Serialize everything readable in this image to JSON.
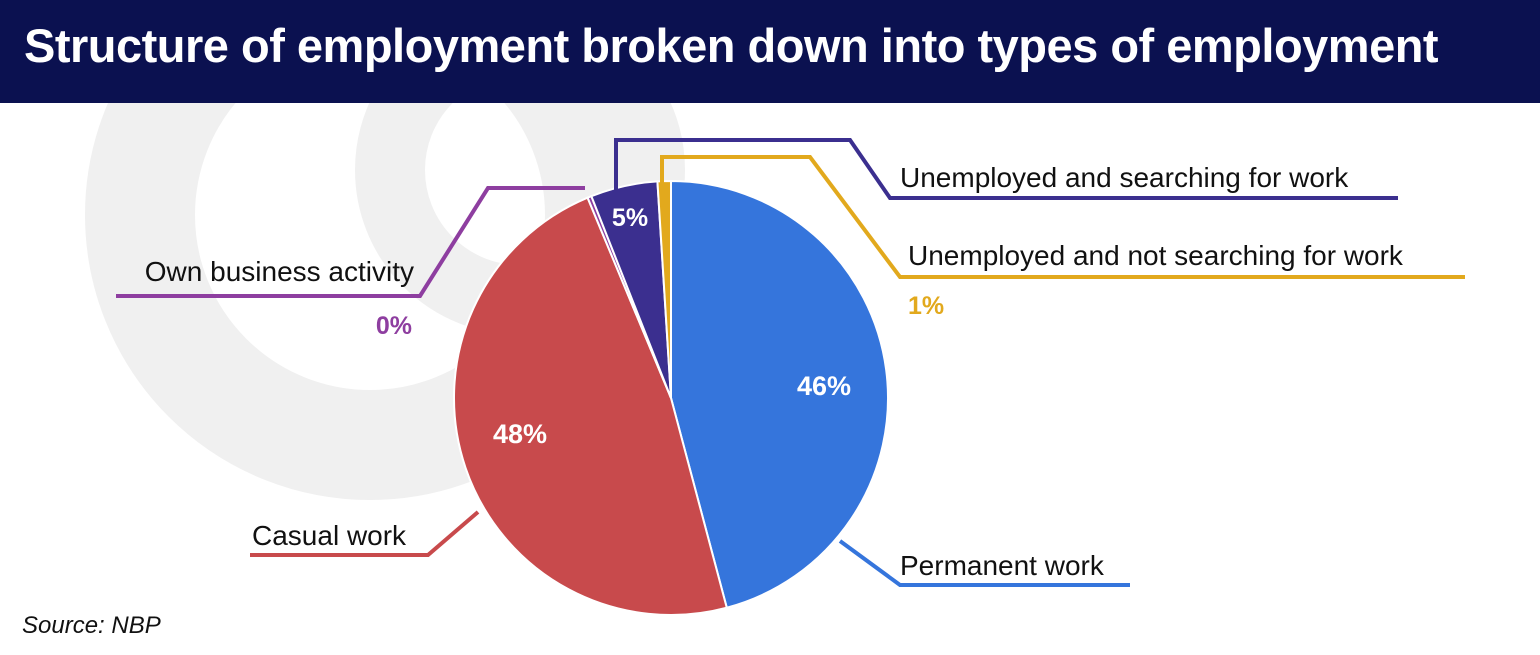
{
  "title": "Structure of employment broken down into types of employment",
  "source": "Source: NBP",
  "colors": {
    "header_bg": "#0b1150",
    "permanent": "#3575dc",
    "casual": "#c84a4c",
    "own_business": "#8e3ea0",
    "unemployed_searching": "#3b2f8f",
    "unemployed_not_searching": "#e2a91d"
  },
  "chart_data": {
    "type": "pie",
    "title": "Structure of employment broken down into types of employment",
    "slices": [
      {
        "label": "Permanent work",
        "value": 46,
        "value_label": "46%",
        "color": "#3575dc"
      },
      {
        "label": "Casual work",
        "value": 48,
        "value_label": "48%",
        "color": "#c84a4c"
      },
      {
        "label": "Own business activity",
        "value": 0.3,
        "value_label": "0%",
        "color": "#8e3ea0"
      },
      {
        "label": "Unemployed and searching for work",
        "value": 5,
        "value_label": "5%",
        "color": "#3b2f8f"
      },
      {
        "label": "Unemployed and not searching for work",
        "value": 1,
        "value_label": "1%",
        "color": "#e2a91d"
      }
    ]
  }
}
